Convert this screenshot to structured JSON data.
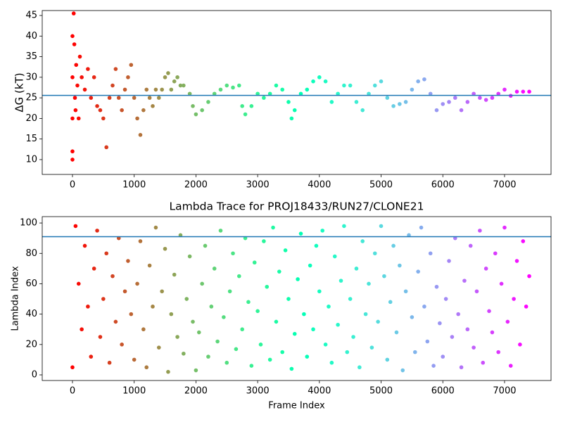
{
  "chart_data": [
    {
      "type": "scatter",
      "ylabel": "ΔG (kT)",
      "colormap": "rainbow_r",
      "xlim": [
        -490,
        7753
      ],
      "ylim": [
        6.4,
        46.2
      ],
      "xticks": [
        0,
        1000,
        2000,
        3000,
        4000,
        5000,
        6000,
        7000
      ],
      "yticks": [
        10,
        15,
        20,
        25,
        30,
        35,
        40,
        45
      ],
      "hline": 25.6,
      "hline_color": "#1f77b4",
      "x": [
        0,
        0,
        0,
        0,
        0,
        20,
        30,
        40,
        50,
        60,
        80,
        100,
        120,
        150,
        200,
        250,
        300,
        350,
        400,
        450,
        500,
        550,
        600,
        650,
        700,
        750,
        800,
        850,
        900,
        950,
        1000,
        1050,
        1100,
        1150,
        1200,
        1250,
        1300,
        1350,
        1400,
        1450,
        1500,
        1550,
        1600,
        1650,
        1700,
        1750,
        1800,
        1900,
        1950,
        2000,
        2100,
        2200,
        2300,
        2400,
        2500,
        2600,
        2700,
        2750,
        2800,
        2900,
        3000,
        3100,
        3200,
        3300,
        3400,
        3500,
        3550,
        3600,
        3700,
        3800,
        3900,
        4000,
        4100,
        4200,
        4300,
        4400,
        4500,
        4600,
        4700,
        4800,
        4900,
        5000,
        5100,
        5200,
        5300,
        5400,
        5500,
        5600,
        5700,
        5800,
        5900,
        6000,
        6100,
        6200,
        6300,
        6400,
        6500,
        6600,
        6700,
        6800,
        6900,
        7000,
        7100,
        7200,
        7300,
        7400
      ],
      "values": [
        10,
        20,
        30,
        40,
        12,
        45.5,
        38,
        25,
        22,
        33,
        28,
        20,
        35,
        30,
        27,
        32,
        25,
        30,
        23,
        22,
        20,
        13,
        25,
        28,
        32,
        25,
        22,
        27,
        30,
        33,
        25,
        20,
        16,
        22,
        27,
        25,
        23,
        27,
        25,
        27,
        30,
        31,
        27,
        29,
        30,
        28,
        28,
        26,
        23,
        21,
        22,
        24,
        26,
        27,
        28,
        27.5,
        28,
        23,
        21,
        23,
        26,
        25,
        26,
        28,
        27,
        24,
        20,
        22,
        26,
        27,
        29,
        30,
        29,
        24,
        26,
        28,
        28,
        24,
        22,
        26,
        28,
        29,
        25,
        23,
        23.5,
        24,
        27,
        29,
        29.5,
        26,
        22,
        23.5,
        24,
        25,
        22,
        24,
        26,
        25,
        24.5,
        25,
        26,
        27,
        25.5,
        26.5,
        26.5,
        26.5
      ]
    },
    {
      "type": "scatter",
      "title": "Lambda Trace for PROJ18433/RUN27/CLONE21",
      "xlabel": "Frame Index",
      "ylabel": "Lambda Index",
      "colormap": "rainbow_r",
      "xlim": [
        -490,
        7753
      ],
      "ylim": [
        -3.7,
        104.2
      ],
      "xticks": [
        0,
        1000,
        2000,
        3000,
        4000,
        5000,
        6000,
        7000
      ],
      "yticks": [
        0,
        20,
        40,
        60,
        80,
        100
      ],
      "hline": 91,
      "hline_color": "#1f77b4",
      "x": [
        0,
        50,
        100,
        150,
        200,
        250,
        300,
        350,
        400,
        450,
        500,
        550,
        600,
        650,
        700,
        750,
        800,
        850,
        900,
        950,
        1000,
        1050,
        1100,
        1150,
        1200,
        1250,
        1300,
        1350,
        1400,
        1450,
        1500,
        1550,
        1600,
        1650,
        1700,
        1750,
        1800,
        1850,
        1900,
        1950,
        2000,
        2050,
        2100,
        2150,
        2200,
        2250,
        2300,
        2350,
        2400,
        2450,
        2500,
        2550,
        2600,
        2650,
        2700,
        2750,
        2800,
        2850,
        2900,
        2950,
        3000,
        3050,
        3100,
        3150,
        3200,
        3250,
        3300,
        3350,
        3400,
        3450,
        3500,
        3550,
        3600,
        3650,
        3700,
        3750,
        3800,
        3850,
        3900,
        3950,
        4000,
        4050,
        4100,
        4150,
        4200,
        4250,
        4300,
        4350,
        4400,
        4450,
        4500,
        4550,
        4600,
        4650,
        4700,
        4750,
        4800,
        4850,
        4900,
        4950,
        5000,
        5050,
        5100,
        5150,
        5200,
        5250,
        5300,
        5350,
        5400,
        5450,
        5500,
        5550,
        5600,
        5650,
        5700,
        5750,
        5800,
        5850,
        5900,
        5950,
        6000,
        6050,
        6100,
        6150,
        6200,
        6250,
        6300,
        6350,
        6400,
        6450,
        6500,
        6550,
        6600,
        6650,
        6700,
        6750,
        6800,
        6850,
        6900,
        6950,
        7000,
        7050,
        7100,
        7150,
        7200,
        7250,
        7300,
        7350,
        7400
      ],
      "values": [
        5,
        98,
        60,
        30,
        85,
        45,
        12,
        70,
        95,
        25,
        50,
        80,
        8,
        65,
        35,
        90,
        20,
        55,
        75,
        40,
        10,
        60,
        88,
        30,
        5,
        72,
        45,
        97,
        18,
        55,
        83,
        2,
        40,
        66,
        25,
        92,
        14,
        50,
        78,
        35,
        3,
        28,
        60,
        85,
        12,
        45,
        70,
        22,
        95,
        38,
        8,
        55,
        80,
        17,
        65,
        30,
        90,
        48,
        6,
        74,
        42,
        20,
        88,
        58,
        10,
        97,
        35,
        68,
        15,
        82,
        50,
        4,
        27,
        63,
        93,
        40,
        12,
        72,
        30,
        85,
        55,
        95,
        20,
        45,
        8,
        78,
        33,
        62,
        98,
        15,
        50,
        25,
        70,
        5,
        88,
        40,
        60,
        18,
        80,
        35,
        98,
        65,
        10,
        48,
        85,
        28,
        72,
        3,
        55,
        92,
        38,
        15,
        68,
        97,
        45,
        22,
        80,
        6,
        58,
        34,
        12,
        50,
        75,
        25,
        90,
        40,
        5,
        62,
        30,
        85,
        18,
        55,
        95,
        8,
        70,
        42,
        28,
        80,
        15,
        60,
        97,
        35,
        6,
        50,
        75,
        20,
        88,
        45,
        65
      ]
    }
  ]
}
